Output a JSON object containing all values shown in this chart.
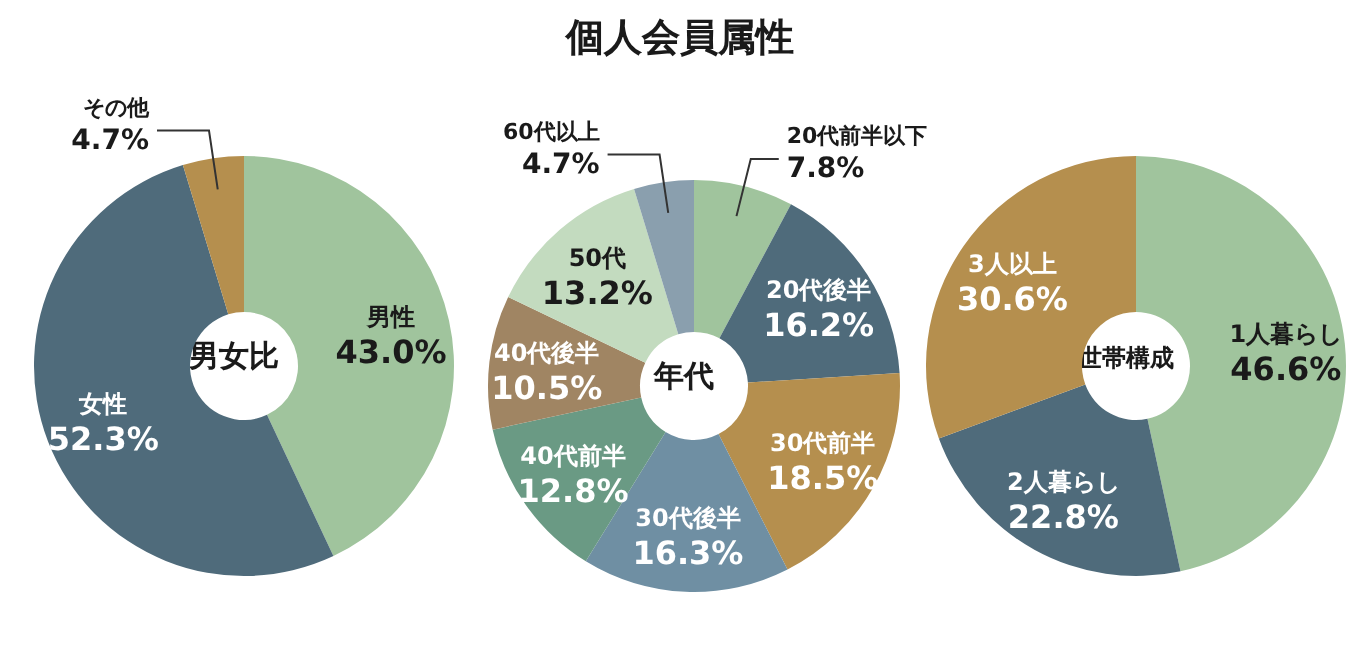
{
  "chart_data": [
    {
      "type": "donut",
      "title": "男女比",
      "annotations": [
        "個人会員属性"
      ],
      "categories": [
        "男性",
        "女性",
        "その他"
      ],
      "values": [
        43.0,
        52.3,
        4.7
      ],
      "value_labels": [
        "43.0%",
        "52.3%",
        "4.7%"
      ],
      "colors": [
        "#a0c49d",
        "#4f6b7b",
        "#b58f4e"
      ],
      "legend": false
    },
    {
      "type": "donut",
      "title": "年代",
      "categories": [
        "20代前半以下",
        "20代後半",
        "30代前半",
        "30代後半",
        "40代前半",
        "40代後半",
        "50代",
        "60代以上"
      ],
      "values": [
        7.8,
        16.2,
        18.5,
        16.3,
        12.8,
        10.5,
        13.2,
        4.7
      ],
      "value_labels": [
        "7.8%",
        "16.2%",
        "18.5%",
        "16.3%",
        "12.8%",
        "10.5%",
        "13.2%",
        "4.7%"
      ],
      "colors": [
        "#a0c49d",
        "#4f6b7b",
        "#b58f4e",
        "#6f8fa3",
        "#6a9a84",
        "#a08563",
        "#c3dbbf",
        "#8a9fae"
      ],
      "legend": false
    },
    {
      "type": "donut",
      "title": "世帯構成",
      "categories": [
        "1人暮らし",
        "2人暮らし",
        "3人以上"
      ],
      "values": [
        46.6,
        22.8,
        30.6
      ],
      "value_labels": [
        "46.6%",
        "22.8%",
        "30.6%"
      ],
      "colors": [
        "#a0c49d",
        "#4f6b7b",
        "#b58f4e"
      ],
      "legend": false
    }
  ]
}
